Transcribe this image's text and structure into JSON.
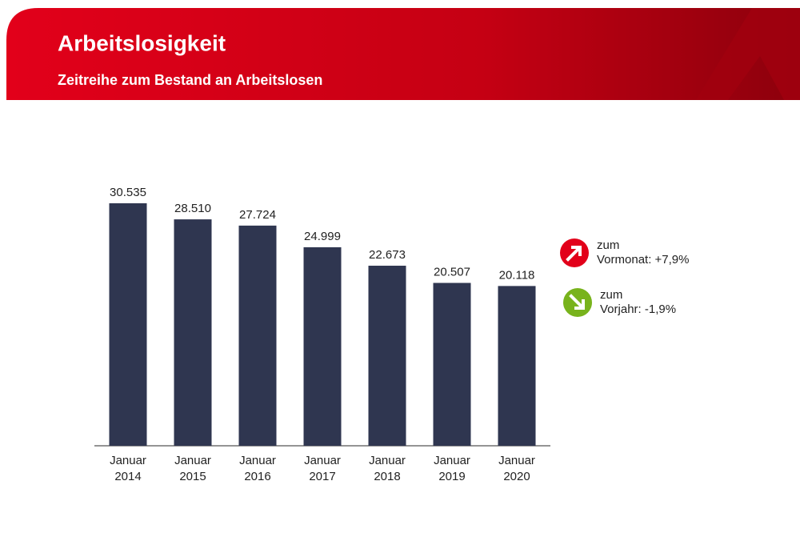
{
  "chart_data": {
    "type": "bar",
    "title": "Arbeitslosigkeit",
    "subtitle": "Zeitreihe zum Bestand an Arbeitslosen",
    "categories": [
      "Januar 2014",
      "Januar 2015",
      "Januar 2016",
      "Januar 2017",
      "Januar 2018",
      "Januar 2019",
      "Januar 2020"
    ],
    "values": [
      30535,
      28510,
      27724,
      24999,
      22673,
      20507,
      20118
    ],
    "value_labels": [
      "30.535",
      "28.510",
      "27.724",
      "24.999",
      "22.673",
      "20.507",
      "20.118"
    ],
    "color": "#2f3650",
    "annotations": [
      {
        "prefix": "zum",
        "text": "Vormonat: +7,9%",
        "direction": "up",
        "color": "#e2001a"
      },
      {
        "prefix": "zum",
        "text": "Vorjahr: -1,9%",
        "direction": "down",
        "color": "#78b31c"
      }
    ]
  }
}
